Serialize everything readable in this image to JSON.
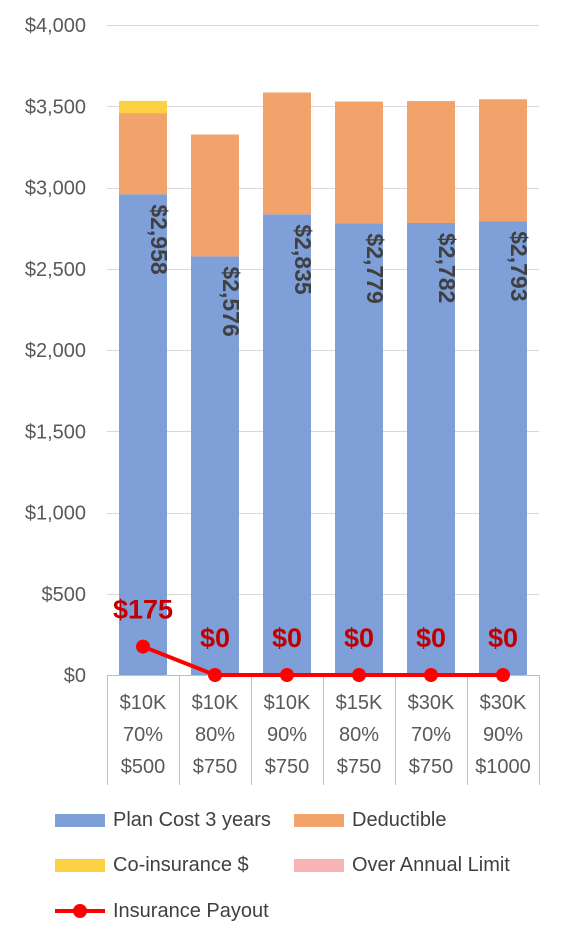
{
  "chart_data": {
    "type": "bar",
    "stacked": true,
    "categories": [
      [
        "$10K",
        "70%",
        "$500"
      ],
      [
        "$10K",
        "80%",
        "$750"
      ],
      [
        "$10K",
        "90%",
        "$750"
      ],
      [
        "$15K",
        "80%",
        "$750"
      ],
      [
        "$30K",
        "70%",
        "$750"
      ],
      [
        "$30K",
        "90%",
        "$1000"
      ]
    ],
    "ylim": [
      0,
      4000
    ],
    "yticks": [
      0,
      500,
      1000,
      1500,
      2000,
      2500,
      3000,
      3500,
      4000
    ],
    "ytick_labels": [
      "$0",
      "$500",
      "$1,000",
      "$1,500",
      "$2,000",
      "$2,500",
      "$3,000",
      "$3,500",
      "$4,000"
    ],
    "grid": true,
    "legend_position": "bottom",
    "series": [
      {
        "name": "Plan Cost 3 years",
        "kind": "bar",
        "color": "#7f9fd8",
        "values": [
          2958,
          2576,
          2835,
          2779,
          2782,
          2793
        ],
        "labels": [
          "$2,958",
          "$2,576",
          "$2,835",
          "$2,779",
          "$2,782",
          "$2,793"
        ]
      },
      {
        "name": "Deductible",
        "kind": "bar",
        "color": "#f2a36b",
        "values": [
          500,
          750,
          750,
          750,
          750,
          750
        ]
      },
      {
        "name": "Co-insurance $",
        "kind": "bar",
        "color": "#fcd143",
        "values": [
          75,
          0,
          0,
          0,
          0,
          0
        ]
      },
      {
        "name": "Over Annual Limit",
        "kind": "bar",
        "color": "#f8b4b4",
        "values": [
          0,
          0,
          0,
          0,
          0,
          0
        ]
      },
      {
        "name": "Insurance Payout",
        "kind": "line",
        "color": "#ff0000",
        "values": [
          175,
          0,
          0,
          0,
          0,
          0
        ],
        "labels": [
          "$175",
          "$0",
          "$0",
          "$0",
          "$0",
          "$0"
        ],
        "label_color": "#c00000"
      }
    ]
  }
}
